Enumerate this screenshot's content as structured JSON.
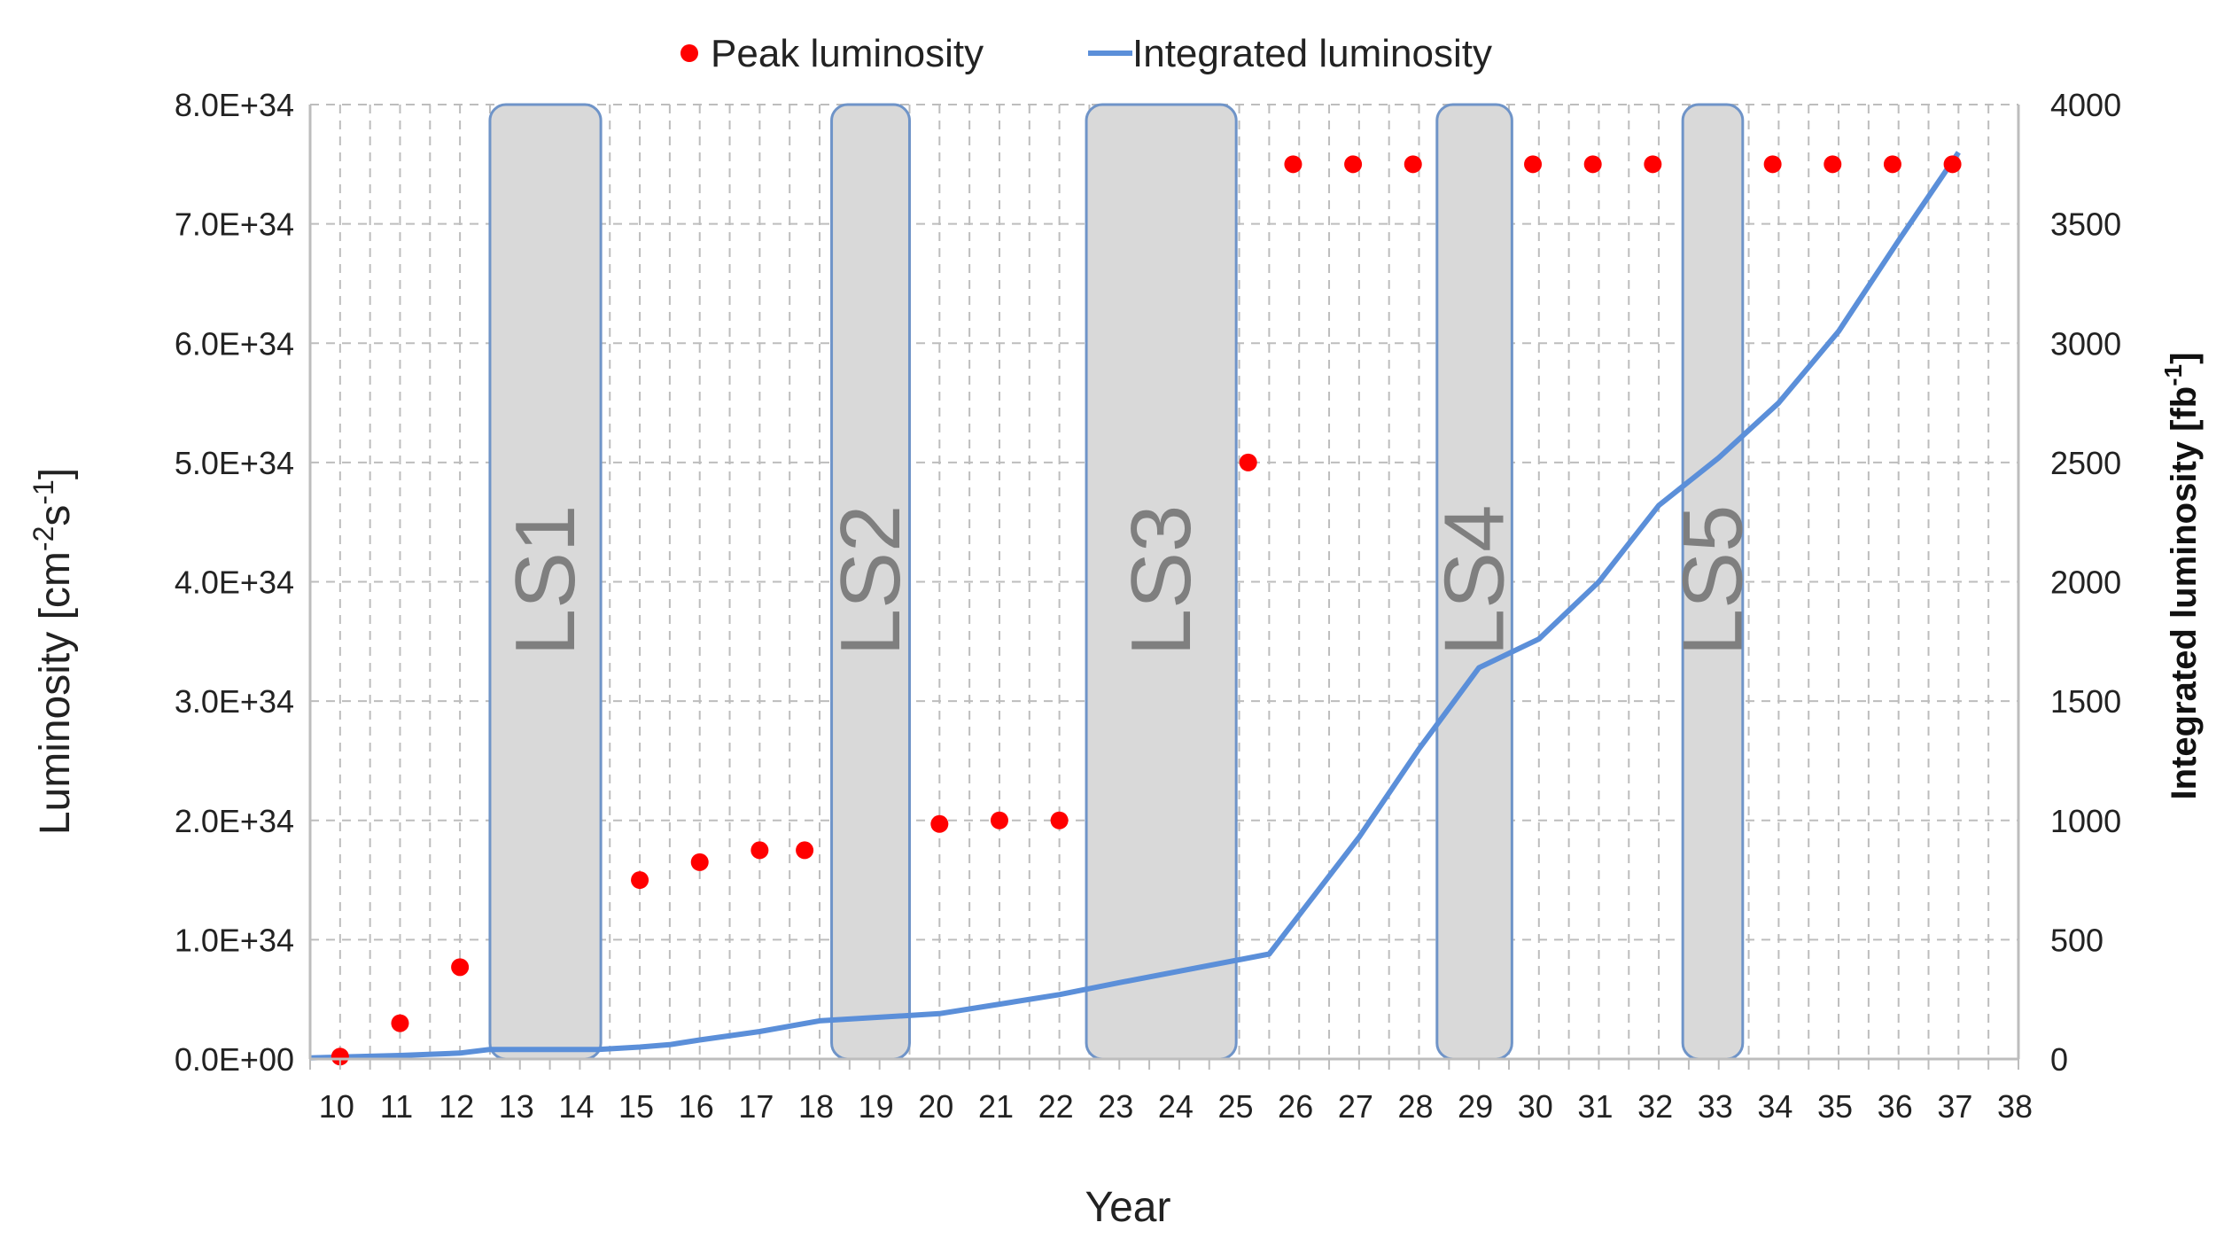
{
  "chart_data": {
    "type": "line",
    "x_axis": {
      "label": "Year",
      "range": [
        9.5,
        38
      ],
      "tick_labels": [
        "10",
        "11",
        "12",
        "13",
        "14",
        "15",
        "16",
        "17",
        "18",
        "19",
        "20",
        "21",
        "22",
        "23",
        "24",
        "25",
        "26",
        "27",
        "28",
        "29",
        "30",
        "31",
        "32",
        "33",
        "34",
        "35",
        "36",
        "37",
        "38"
      ],
      "tick_values": [
        10,
        11,
        12,
        13,
        14,
        15,
        16,
        17,
        18,
        19,
        20,
        21,
        22,
        23,
        24,
        25,
        26,
        27,
        28,
        29,
        30,
        31,
        32,
        33,
        34,
        35,
        36,
        37,
        38
      ]
    },
    "y_left": {
      "label": "Luminosity [cm",
      "label_sup1": "-2",
      "label_mid": "s",
      "label_sup2": "-1",
      "label_end": "]",
      "range": [
        0,
        8e+34
      ],
      "tick_values": [
        0,
        1e+34,
        2e+34,
        3e+34,
        4e+34,
        5e+34,
        6e+34,
        7e+34,
        8e+34
      ],
      "tick_labels": [
        "0.0E+00",
        "1.0E+34",
        "2.0E+34",
        "3.0E+34",
        "4.0E+34",
        "5.0E+34",
        "6.0E+34",
        "7.0E+34",
        "8.0E+34"
      ]
    },
    "y_right": {
      "label": "Integrated luminosity [fb",
      "label_sup": "-1",
      "label_end": "]",
      "range": [
        0,
        4000
      ],
      "tick_values": [
        0,
        500,
        1000,
        1500,
        2000,
        2500,
        3000,
        3500,
        4000
      ],
      "tick_labels": [
        "0",
        "500",
        "1000",
        "1500",
        "2000",
        "2500",
        "3000",
        "3500",
        "4000"
      ]
    },
    "grid": true,
    "legend_position": "top-center",
    "legend": [
      {
        "name": "Peak luminosity",
        "marker": "dot",
        "color": "#ff0000"
      },
      {
        "name": "Integrated luminosity",
        "marker": "line",
        "color": "#5b8fd9"
      }
    ],
    "series": [
      {
        "name": "Peak luminosity",
        "kind": "scatter",
        "axis": "left",
        "color": "#ff0000",
        "points": [
          [
            10,
            2e+32
          ],
          [
            11,
            3e+33
          ],
          [
            12,
            7.7e+33
          ],
          [
            15,
            1.5e+34
          ],
          [
            16,
            1.65e+34
          ],
          [
            17,
            1.75e+34
          ],
          [
            17.75,
            1.75e+34
          ],
          [
            20,
            1.97e+34
          ],
          [
            21,
            2e+34
          ],
          [
            22,
            2e+34
          ],
          [
            25.15,
            5e+34
          ],
          [
            25.9,
            7.5e+34
          ],
          [
            26.9,
            7.5e+34
          ],
          [
            27.9,
            7.5e+34
          ],
          [
            29.9,
            7.5e+34
          ],
          [
            30.9,
            7.5e+34
          ],
          [
            31.9,
            7.5e+34
          ],
          [
            33.9,
            7.5e+34
          ],
          [
            34.9,
            7.5e+34
          ],
          [
            35.9,
            7.5e+34
          ],
          [
            36.9,
            7.5e+34
          ]
        ]
      },
      {
        "name": "Integrated luminosity",
        "kind": "line",
        "axis": "right",
        "color": "#5b8fd9",
        "points": [
          [
            9.5,
            5
          ],
          [
            10,
            8
          ],
          [
            11,
            15
          ],
          [
            12,
            25
          ],
          [
            12.5,
            40
          ],
          [
            14.3,
            40
          ],
          [
            15,
            50
          ],
          [
            15.5,
            60
          ],
          [
            16,
            80
          ],
          [
            17,
            115
          ],
          [
            18,
            160
          ],
          [
            20,
            190
          ],
          [
            21,
            230
          ],
          [
            22,
            270
          ],
          [
            23,
            320
          ],
          [
            25.5,
            440
          ],
          [
            27,
            930
          ],
          [
            28,
            1300
          ],
          [
            29,
            1640
          ],
          [
            30,
            1760
          ],
          [
            31,
            2000
          ],
          [
            32,
            2320
          ],
          [
            33,
            2520
          ],
          [
            34,
            2750
          ],
          [
            35,
            3050
          ],
          [
            36,
            3430
          ],
          [
            37,
            3800
          ]
        ]
      }
    ],
    "shutdowns": [
      {
        "label": "LS1",
        "start": 12.5,
        "end": 14.35
      },
      {
        "label": "LS2",
        "start": 18.2,
        "end": 19.5
      },
      {
        "label": "LS3",
        "start": 22.45,
        "end": 24.95
      },
      {
        "label": "LS4",
        "start": 28.3,
        "end": 29.55
      },
      {
        "label": "LS5",
        "start": 32.4,
        "end": 33.4
      }
    ],
    "shutdown_color": "#d9d9d9",
    "shutdown_border": "#6f94c8"
  }
}
